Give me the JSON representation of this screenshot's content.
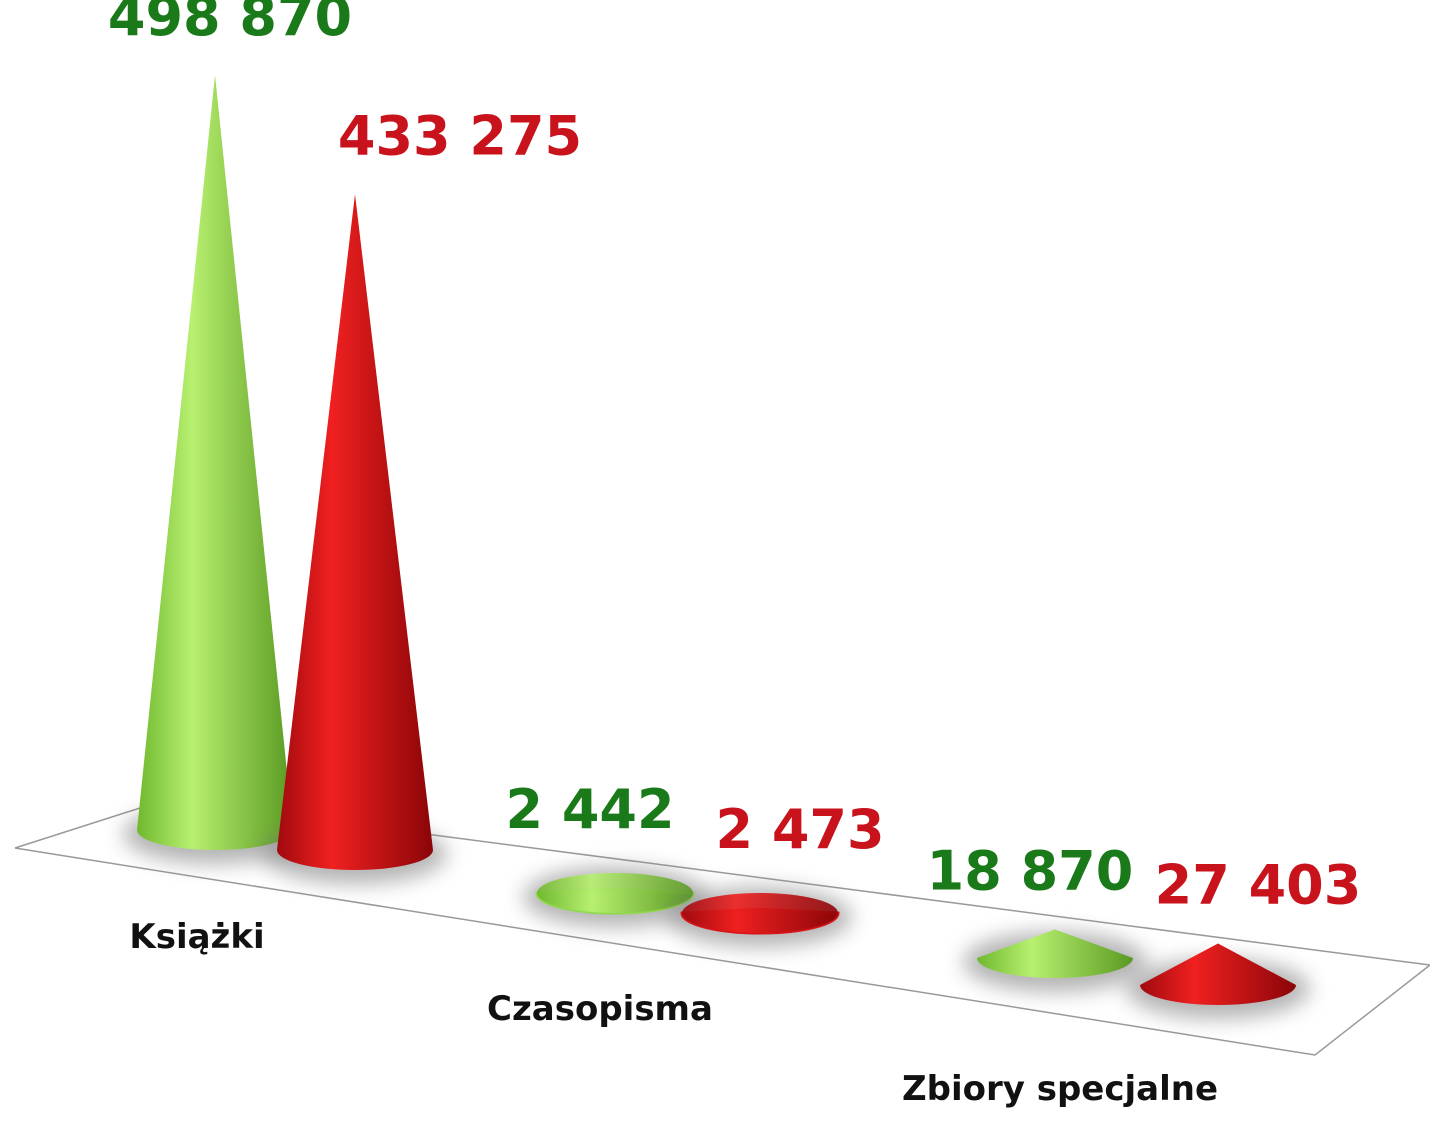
{
  "chart_data": {
    "type": "cone",
    "categories": [
      "Książki",
      "Czasopisma",
      "Zbiory specjalne"
    ],
    "series": [
      {
        "color": "#8fd94a",
        "values": [
          498870,
          2442,
          18870
        ],
        "value_labels": [
          "498 870",
          "2 442",
          "18 870"
        ]
      },
      {
        "color": "#d81418",
        "values": [
          433275,
          2473,
          27403
        ],
        "value_labels": [
          "433 275",
          "2 473",
          "27 403"
        ]
      }
    ]
  }
}
